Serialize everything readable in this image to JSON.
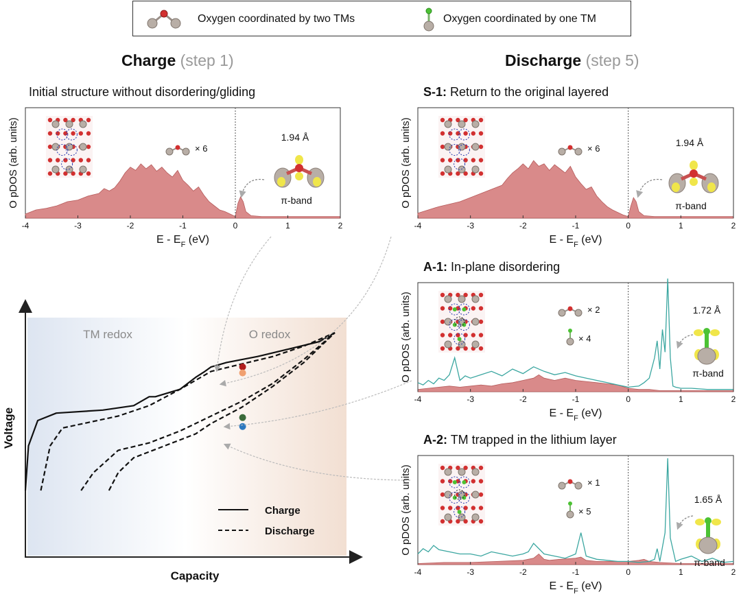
{
  "legend": {
    "two_tm": "Oxygen coordinated by two TMs",
    "one_tm": "Oxygen coordinated by one TM"
  },
  "headers": {
    "charge_bold": "Charge",
    "charge_step": "(step 1)",
    "discharge_bold": "Discharge",
    "discharge_step": "(step 5)"
  },
  "panel_titles": {
    "charge": "Initial structure without disordering/gliding",
    "s1_label": "S-1:",
    "s1_text": "Return to the original layered",
    "a1_label": "A-1:",
    "a1_text": "In-plane disordering",
    "a2_label": "A-2:",
    "a2_text": "TM trapped in the lithium layer"
  },
  "colors": {
    "pdos_fill": "#d98a8a",
    "pdos_stroke": "#b55a5a",
    "one_tm_line": "#3aa6a0",
    "marker_red": "#b01e1e",
    "marker_orange": "#f0a070",
    "marker_green": "#3a6a3a",
    "marker_blue": "#2a78c0",
    "tm_redox_bg": "#dfe6f2",
    "o_redox_bg": "#f3e2d6"
  },
  "chart_data": [
    {
      "id": "charge-step1",
      "type": "area",
      "title": "Initial structure without disordering/gliding",
      "xlabel": "E - E_F (eV)",
      "ylabel": "O pDOS (arb. units)",
      "xlim": [
        -4,
        2
      ],
      "xticks": [
        "-4",
        "-3",
        "-2",
        "-1",
        "0",
        "1",
        "2"
      ],
      "fermi_level": 0,
      "count_two_tm": "× 6",
      "bond_length": "1.94 Å",
      "band_label": "π-band",
      "series": [
        {
          "name": "O coordinated by two TMs",
          "x": [
            -4,
            -3.8,
            -3.6,
            -3.4,
            -3.2,
            -3.0,
            -2.8,
            -2.6,
            -2.5,
            -2.4,
            -2.3,
            -2.2,
            -2.1,
            -2.0,
            -1.9,
            -1.8,
            -1.7,
            -1.6,
            -1.5,
            -1.4,
            -1.3,
            -1.2,
            -1.1,
            -1.0,
            -0.9,
            -0.8,
            -0.7,
            -0.6,
            -0.5,
            -0.4,
            -0.3,
            -0.2,
            -0.1,
            0.0,
            0.05,
            0.1,
            0.15,
            0.2,
            0.3,
            0.5,
            1.0,
            1.5,
            2.0
          ],
          "values": [
            0.05,
            0.1,
            0.12,
            0.15,
            0.2,
            0.22,
            0.27,
            0.3,
            0.36,
            0.33,
            0.37,
            0.45,
            0.55,
            0.62,
            0.58,
            0.66,
            0.6,
            0.65,
            0.57,
            0.62,
            0.55,
            0.5,
            0.58,
            0.46,
            0.4,
            0.33,
            0.38,
            0.28,
            0.2,
            0.15,
            0.1,
            0.08,
            0.05,
            0.02,
            0.18,
            0.26,
            0.2,
            0.08,
            0.03,
            0.02,
            0.02,
            0.02,
            0.02
          ]
        }
      ]
    },
    {
      "id": "discharge-S1",
      "type": "area",
      "title": "S-1: Return to the original layered",
      "xlabel": "E - E_F (eV)",
      "ylabel": "O pDOS (arb. units)",
      "xlim": [
        -4,
        2
      ],
      "xticks": [
        "-4",
        "-3",
        "-2",
        "-1",
        "0",
        "1",
        "2"
      ],
      "fermi_level": 0,
      "count_two_tm": "× 6",
      "bond_length": "1.94 Å",
      "band_label": "π-band",
      "series": [
        {
          "name": "O coordinated by two TMs",
          "x": [
            -4,
            -3.8,
            -3.6,
            -3.4,
            -3.2,
            -3.0,
            -2.8,
            -2.6,
            -2.4,
            -2.3,
            -2.2,
            -2.1,
            -2.0,
            -1.9,
            -1.8,
            -1.7,
            -1.6,
            -1.5,
            -1.4,
            -1.3,
            -1.2,
            -1.1,
            -1.0,
            -0.9,
            -0.8,
            -0.7,
            -0.6,
            -0.5,
            -0.4,
            -0.3,
            -0.2,
            -0.1,
            0.0,
            0.05,
            0.1,
            0.15,
            0.2,
            0.3,
            0.5,
            1.0,
            1.5,
            2.0
          ],
          "values": [
            0.06,
            0.1,
            0.14,
            0.17,
            0.2,
            0.25,
            0.3,
            0.35,
            0.4,
            0.48,
            0.55,
            0.6,
            0.66,
            0.6,
            0.7,
            0.63,
            0.66,
            0.58,
            0.65,
            0.6,
            0.55,
            0.63,
            0.5,
            0.42,
            0.35,
            0.38,
            0.27,
            0.2,
            0.14,
            0.1,
            0.07,
            0.04,
            0.02,
            0.15,
            0.25,
            0.2,
            0.08,
            0.03,
            0.02,
            0.02,
            0.02,
            0.02
          ]
        }
      ]
    },
    {
      "id": "discharge-A1",
      "type": "line",
      "title": "A-1: In-plane disordering",
      "xlabel": "E - E_F (eV)",
      "ylabel": "O pDOS (arb. units)",
      "xlim": [
        -4,
        2
      ],
      "xticks": [
        "-4",
        "-3",
        "-2",
        "-1",
        "0",
        "1",
        "2"
      ],
      "fermi_level": 0,
      "count_two_tm": "× 2",
      "count_one_tm": "× 4",
      "bond_length": "1.72 Å",
      "band_label": "π-band",
      "series": [
        {
          "name": "O coordinated by two TMs",
          "x": [
            -4,
            -3.8,
            -3.6,
            -3.4,
            -3.2,
            -3.0,
            -2.8,
            -2.6,
            -2.4,
            -2.2,
            -2.0,
            -1.8,
            -1.7,
            -1.6,
            -1.4,
            -1.2,
            -1.0,
            -0.8,
            -0.6,
            -0.4,
            -0.2,
            0.0,
            0.2,
            0.4,
            0.6,
            0.8,
            1.0,
            1.5,
            2.0
          ],
          "values": [
            0.02,
            0.03,
            0.04,
            0.05,
            0.04,
            0.05,
            0.06,
            0.05,
            0.07,
            0.08,
            0.1,
            0.12,
            0.15,
            0.12,
            0.1,
            0.12,
            0.1,
            0.09,
            0.08,
            0.07,
            0.06,
            0.03,
            0.02,
            0.02,
            0.01,
            0.01,
            0.01,
            0.01,
            0.01
          ]
        },
        {
          "name": "O coordinated by one TM",
          "x": [
            -4,
            -3.9,
            -3.8,
            -3.7,
            -3.6,
            -3.5,
            -3.4,
            -3.3,
            -3.2,
            -3.1,
            -3.0,
            -2.8,
            -2.6,
            -2.4,
            -2.2,
            -2.0,
            -1.8,
            -1.6,
            -1.4,
            -1.2,
            -1.0,
            -0.8,
            -0.6,
            -0.4,
            -0.2,
            0.0,
            0.2,
            0.3,
            0.4,
            0.5,
            0.55,
            0.6,
            0.65,
            0.7,
            0.75,
            0.8,
            0.85,
            0.9,
            1.0,
            1.2,
            1.5,
            2.0
          ],
          "values": [
            0.08,
            0.06,
            0.1,
            0.07,
            0.12,
            0.1,
            0.15,
            0.3,
            0.1,
            0.14,
            0.12,
            0.15,
            0.18,
            0.14,
            0.2,
            0.16,
            0.22,
            0.18,
            0.15,
            0.17,
            0.14,
            0.12,
            0.1,
            0.08,
            0.06,
            0.04,
            0.05,
            0.08,
            0.12,
            0.3,
            0.45,
            0.2,
            0.55,
            0.35,
            1.0,
            0.3,
            0.05,
            0.04,
            0.03,
            0.03,
            0.02,
            0.02
          ]
        }
      ]
    },
    {
      "id": "discharge-A2",
      "type": "line",
      "title": "A-2: TM trapped in the lithium layer",
      "xlabel": "E - E_F (eV)",
      "ylabel": "O pDOS (arb. units)",
      "xlim": [
        -4,
        2
      ],
      "xticks": [
        "-4",
        "-3",
        "-2",
        "-1",
        "0",
        "1",
        "2"
      ],
      "fermi_level": 0,
      "count_two_tm": "× 1",
      "count_one_tm": "× 5",
      "bond_length": "1.65 Å",
      "band_label": "π-band",
      "series": [
        {
          "name": "O coordinated by two TMs",
          "x": [
            -4,
            -3.5,
            -3.0,
            -2.5,
            -2.0,
            -1.8,
            -1.7,
            -1.6,
            -1.5,
            -1.3,
            -1.0,
            -0.9,
            -0.8,
            -0.6,
            -0.4,
            -0.2,
            0.0,
            0.2,
            0.3,
            0.4,
            0.6,
            1.0,
            1.5,
            2.0
          ],
          "values": [
            0.01,
            0.02,
            0.02,
            0.03,
            0.04,
            0.06,
            0.1,
            0.05,
            0.04,
            0.05,
            0.06,
            0.07,
            0.04,
            0.03,
            0.03,
            0.03,
            0.03,
            0.04,
            0.05,
            0.03,
            0.02,
            0.01,
            0.01,
            0.01
          ]
        },
        {
          "name": "O coordinated by one TM",
          "x": [
            -4,
            -3.9,
            -3.8,
            -3.7,
            -3.6,
            -3.4,
            -3.2,
            -3.0,
            -2.8,
            -2.6,
            -2.4,
            -2.2,
            -2.0,
            -1.9,
            -1.8,
            -1.6,
            -1.4,
            -1.2,
            -1.0,
            -0.9,
            -0.8,
            -0.6,
            -0.4,
            -0.2,
            0.0,
            0.2,
            0.4,
            0.5,
            0.55,
            0.6,
            0.7,
            0.75,
            0.8,
            0.9,
            1.0,
            1.2,
            1.4,
            1.6,
            1.8,
            2.0
          ],
          "values": [
            0.1,
            0.15,
            0.12,
            0.18,
            0.14,
            0.12,
            0.1,
            0.1,
            0.08,
            0.12,
            0.1,
            0.08,
            0.1,
            0.12,
            0.2,
            0.1,
            0.08,
            0.06,
            0.1,
            0.3,
            0.08,
            0.05,
            0.04,
            0.03,
            0.03,
            0.02,
            0.03,
            0.05,
            0.15,
            0.03,
            0.3,
            1.0,
            0.25,
            0.03,
            0.05,
            0.08,
            0.03,
            0.06,
            0.02,
            0.03
          ]
        }
      ]
    },
    {
      "id": "voltage-capacity",
      "type": "line",
      "title": "",
      "xlabel": "Capacity",
      "ylabel": "Voltage",
      "regions": [
        "TM redox",
        "O redox"
      ],
      "legend": {
        "solid": "Charge",
        "dashed": "Discharge"
      },
      "series": [
        {
          "name": "Charge",
          "style": "solid",
          "x": [
            0,
            0.01,
            0.04,
            0.1,
            0.25,
            0.35,
            0.4,
            0.42,
            0.5,
            0.55,
            0.58,
            0.6,
            0.65,
            0.75,
            0.85,
            0.95,
            1.0
          ],
          "values": [
            0.0,
            0.3,
            0.47,
            0.52,
            0.54,
            0.57,
            0.63,
            0.63,
            0.68,
            0.76,
            0.8,
            0.83,
            0.86,
            0.9,
            0.95,
            1.0,
            1.06
          ]
        },
        {
          "name": "Discharge (S-1)",
          "style": "dashed",
          "x": [
            0.05,
            0.08,
            0.12,
            0.3,
            0.4,
            0.5,
            0.55,
            0.6,
            0.7,
            0.8,
            0.9,
            1.0
          ],
          "values": [
            0.0,
            0.3,
            0.42,
            0.5,
            0.57,
            0.68,
            0.74,
            0.8,
            0.85,
            0.9,
            0.97,
            1.06
          ]
        },
        {
          "name": "Discharge (A-1)",
          "style": "dashed",
          "x": [
            0.18,
            0.22,
            0.3,
            0.4,
            0.5,
            0.6,
            0.7,
            0.8,
            0.9,
            1.0
          ],
          "values": [
            0.0,
            0.12,
            0.27,
            0.32,
            0.4,
            0.5,
            0.6,
            0.72,
            0.88,
            1.06
          ]
        },
        {
          "name": "Discharge (A-2)",
          "style": "dashed",
          "x": [
            0.27,
            0.3,
            0.35,
            0.45,
            0.55,
            0.6,
            0.7,
            0.8,
            0.9,
            1.0
          ],
          "values": [
            0.0,
            0.12,
            0.22,
            0.3,
            0.38,
            0.45,
            0.56,
            0.7,
            0.86,
            1.06
          ]
        }
      ],
      "markers": [
        {
          "name": "charge-step1",
          "x": 0.6,
          "y": 0.83,
          "color": "#b01e1e"
        },
        {
          "name": "S-1",
          "x": 0.6,
          "y": 0.79,
          "color": "#f0a070"
        },
        {
          "name": "A-1",
          "x": 0.6,
          "y": 0.49,
          "color": "#3a6a3a"
        },
        {
          "name": "A-2",
          "x": 0.6,
          "y": 0.43,
          "color": "#2a78c0"
        }
      ]
    }
  ]
}
